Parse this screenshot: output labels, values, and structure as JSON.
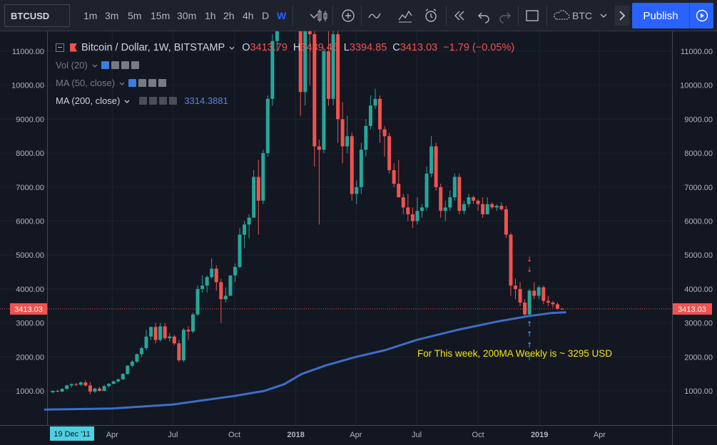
{
  "toolbar": {
    "symbol": "BTCUSD",
    "intervals": [
      {
        "label": "1m",
        "active": false
      },
      {
        "label": "3m",
        "active": false
      },
      {
        "label": "5m",
        "active": false
      },
      {
        "label": "15m",
        "active": false
      },
      {
        "label": "30m",
        "active": false
      },
      {
        "label": "1h",
        "active": false
      },
      {
        "label": "2h",
        "active": false
      },
      {
        "label": "4h",
        "active": false
      },
      {
        "label": "D",
        "active": false
      },
      {
        "label": "W",
        "active": true
      }
    ],
    "compare_label": "BTC",
    "publish_label": "Publish",
    "icons": [
      "chevron-down-icon",
      "candlestick-icon",
      "add-indicator-icon",
      "line-chart-icon",
      "templates-icon",
      "alert-icon",
      "replay-icon",
      "undo-icon",
      "redo-icon",
      "fullscreen-icon",
      "cloud-icon",
      "more-icon",
      "play-icon"
    ]
  },
  "legend": {
    "title": "Bitcoin / Dollar, 1W, BITSTAMP",
    "ohlc": {
      "o_label": "O",
      "o": "3413.79",
      "h_label": "H",
      "h": "3439.46",
      "l_label": "L",
      "l": "3394.85",
      "c_label": "C",
      "c": "3413.03",
      "change": "−1.79 (−0.05%)"
    },
    "indicators": [
      {
        "name": "Vol (20)",
        "value": ""
      },
      {
        "name": "MA (50, close)",
        "value": ""
      },
      {
        "name": "MA (200, close)",
        "value": "3314.3881"
      }
    ]
  },
  "price_tag": "3413.03",
  "cursor_date": "19 Dec '11",
  "annotation": "For This week, 200MA Weekly is ~ 3295 USD",
  "colors": {
    "up": "#26a69a",
    "down": "#ef5350",
    "ma200": "#3e6dc6",
    "annotation": "#f2e312",
    "background": "#131722"
  },
  "chart_data": {
    "type": "candlestick",
    "y_ticks": [
      "1000.00",
      "2000.00",
      "3000.00",
      "4000.00",
      "5000.00",
      "6000.00",
      "7000.00",
      "8000.00",
      "9000.00",
      "10000.00",
      "11000.00"
    ],
    "ylim": [
      1000,
      11000
    ],
    "x_ticks": [
      {
        "label": "Apr",
        "date": "2017-04-01"
      },
      {
        "label": "Jul",
        "date": "2017-07-01"
      },
      {
        "label": "Oct",
        "date": "2017-10-01"
      },
      {
        "label": "2018",
        "date": "2018-01-01"
      },
      {
        "label": "Apr",
        "date": "2018-04-01"
      },
      {
        "label": "Jul",
        "date": "2018-07-01"
      },
      {
        "label": "Oct",
        "date": "2018-10-01"
      },
      {
        "label": "2019",
        "date": "2019-01-01"
      },
      {
        "label": "Apr",
        "date": "2019-04-01"
      }
    ],
    "candles": [
      {
        "date": "2017-01-02",
        "o": 960,
        "h": 1010,
        "l": 930,
        "c": 1000
      },
      {
        "date": "2017-01-09",
        "o": 1000,
        "h": 1040,
        "l": 960,
        "c": 980
      },
      {
        "date": "2017-01-16",
        "o": 980,
        "h": 1080,
        "l": 960,
        "c": 1060
      },
      {
        "date": "2017-01-23",
        "o": 1060,
        "h": 1180,
        "l": 1040,
        "c": 1160
      },
      {
        "date": "2017-01-30",
        "o": 1160,
        "h": 1220,
        "l": 1100,
        "c": 1200
      },
      {
        "date": "2017-02-06",
        "o": 1200,
        "h": 1230,
        "l": 1140,
        "c": 1180
      },
      {
        "date": "2017-02-13",
        "o": 1180,
        "h": 1280,
        "l": 1150,
        "c": 1250
      },
      {
        "date": "2017-02-20",
        "o": 1250,
        "h": 1320,
        "l": 1130,
        "c": 1160
      },
      {
        "date": "2017-02-27",
        "o": 1160,
        "h": 1260,
        "l": 900,
        "c": 980
      },
      {
        "date": "2017-03-06",
        "o": 980,
        "h": 1090,
        "l": 930,
        "c": 1070
      },
      {
        "date": "2017-03-13",
        "o": 1070,
        "h": 1120,
        "l": 980,
        "c": 1000
      },
      {
        "date": "2017-03-20",
        "o": 1000,
        "h": 1180,
        "l": 990,
        "c": 1140
      },
      {
        "date": "2017-03-27",
        "o": 1140,
        "h": 1230,
        "l": 1100,
        "c": 1210
      },
      {
        "date": "2017-04-03",
        "o": 1210,
        "h": 1300,
        "l": 1190,
        "c": 1280
      },
      {
        "date": "2017-04-10",
        "o": 1280,
        "h": 1360,
        "l": 1250,
        "c": 1340
      },
      {
        "date": "2017-04-17",
        "o": 1340,
        "h": 1520,
        "l": 1320,
        "c": 1500
      },
      {
        "date": "2017-04-24",
        "o": 1500,
        "h": 1760,
        "l": 1480,
        "c": 1740
      },
      {
        "date": "2017-05-01",
        "o": 1740,
        "h": 1900,
        "l": 1700,
        "c": 1860
      },
      {
        "date": "2017-05-08",
        "o": 1860,
        "h": 2100,
        "l": 1820,
        "c": 2080
      },
      {
        "date": "2017-05-15",
        "o": 2080,
        "h": 2300,
        "l": 2000,
        "c": 2260
      },
      {
        "date": "2017-05-22",
        "o": 2260,
        "h": 2800,
        "l": 2200,
        "c": 2600
      },
      {
        "date": "2017-05-29",
        "o": 2600,
        "h": 2900,
        "l": 2500,
        "c": 2880
      },
      {
        "date": "2017-06-05",
        "o": 2880,
        "h": 3000,
        "l": 2400,
        "c": 2500
      },
      {
        "date": "2017-06-12",
        "o": 2500,
        "h": 3000,
        "l": 2450,
        "c": 2900
      },
      {
        "date": "2017-06-19",
        "o": 2900,
        "h": 3000,
        "l": 2500,
        "c": 2550
      },
      {
        "date": "2017-06-26",
        "o": 2550,
        "h": 2700,
        "l": 2450,
        "c": 2600
      },
      {
        "date": "2017-07-03",
        "o": 2600,
        "h": 2650,
        "l": 2350,
        "c": 2400
      },
      {
        "date": "2017-07-10",
        "o": 2400,
        "h": 2500,
        "l": 1850,
        "c": 1900
      },
      {
        "date": "2017-07-17",
        "o": 1900,
        "h": 2850,
        "l": 1850,
        "c": 2800
      },
      {
        "date": "2017-07-24",
        "o": 2800,
        "h": 2900,
        "l": 2500,
        "c": 2750
      },
      {
        "date": "2017-07-31",
        "o": 2750,
        "h": 3300,
        "l": 2700,
        "c": 3250
      },
      {
        "date": "2017-08-07",
        "o": 3250,
        "h": 4100,
        "l": 3200,
        "c": 4000
      },
      {
        "date": "2017-08-14",
        "o": 4000,
        "h": 4400,
        "l": 3900,
        "c": 4100
      },
      {
        "date": "2017-08-21",
        "o": 4100,
        "h": 4400,
        "l": 3900,
        "c": 4350
      },
      {
        "date": "2017-08-28",
        "o": 4350,
        "h": 4900,
        "l": 4300,
        "c": 4600
      },
      {
        "date": "2017-09-04",
        "o": 4600,
        "h": 4700,
        "l": 3950,
        "c": 4200
      },
      {
        "date": "2017-09-11",
        "o": 4200,
        "h": 4300,
        "l": 3000,
        "c": 3700
      },
      {
        "date": "2017-09-18",
        "o": 3700,
        "h": 4050,
        "l": 3600,
        "c": 3800
      },
      {
        "date": "2017-09-25",
        "o": 3800,
        "h": 4400,
        "l": 3800,
        "c": 4400
      },
      {
        "date": "2017-10-02",
        "o": 4400,
        "h": 4750,
        "l": 4200,
        "c": 4650
      },
      {
        "date": "2017-10-09",
        "o": 4650,
        "h": 5800,
        "l": 4600,
        "c": 5600
      },
      {
        "date": "2017-10-16",
        "o": 5600,
        "h": 6000,
        "l": 5200,
        "c": 5900
      },
      {
        "date": "2017-10-23",
        "o": 5900,
        "h": 6200,
        "l": 5500,
        "c": 6100
      },
      {
        "date": "2017-10-30",
        "o": 6100,
        "h": 7500,
        "l": 6100,
        "c": 7300
      },
      {
        "date": "2017-11-06",
        "o": 7300,
        "h": 7800,
        "l": 5600,
        "c": 6600
      },
      {
        "date": "2017-11-13",
        "o": 6600,
        "h": 8100,
        "l": 6500,
        "c": 8000
      },
      {
        "date": "2017-11-20",
        "o": 8000,
        "h": 9700,
        "l": 7900,
        "c": 9600
      },
      {
        "date": "2017-11-27",
        "o": 9600,
        "h": 11500,
        "l": 9400,
        "c": 11300
      },
      {
        "date": "2017-12-04",
        "o": 11300,
        "h": 11600,
        "l": 11000,
        "c": 11600
      }
    ],
    "clip_gap_candles": [
      {
        "date": "2018-01-01",
        "o": 11600,
        "h": 11600,
        "l": 11000,
        "c": 11600
      }
    ],
    "candles_2": [
      {
        "date": "2018-01-08",
        "o": 11600,
        "h": 11600,
        "l": 9100,
        "c": 9800
      },
      {
        "date": "2018-01-15",
        "o": 9800,
        "h": 11600,
        "l": 9400,
        "c": 11600
      },
      {
        "date": "2018-01-22",
        "o": 11600,
        "h": 11600,
        "l": 10000,
        "c": 11500
      },
      {
        "date": "2018-01-29",
        "o": 11500,
        "h": 11600,
        "l": 7600,
        "c": 8200
      },
      {
        "date": "2018-02-05",
        "o": 8200,
        "h": 8400,
        "l": 5900,
        "c": 8100
      },
      {
        "date": "2018-02-12",
        "o": 8100,
        "h": 11100,
        "l": 8000,
        "c": 11000
      },
      {
        "date": "2018-02-19",
        "o": 11000,
        "h": 11600,
        "l": 9400,
        "c": 9600
      },
      {
        "date": "2018-02-26",
        "o": 9600,
        "h": 11600,
        "l": 9400,
        "c": 11500
      },
      {
        "date": "2018-03-05",
        "o": 11500,
        "h": 11600,
        "l": 8300,
        "c": 9000
      },
      {
        "date": "2018-03-12",
        "o": 9000,
        "h": 9500,
        "l": 7700,
        "c": 8200
      },
      {
        "date": "2018-03-19",
        "o": 8200,
        "h": 9100,
        "l": 8000,
        "c": 8500
      },
      {
        "date": "2018-03-26",
        "o": 8500,
        "h": 8600,
        "l": 6600,
        "c": 6800
      },
      {
        "date": "2018-04-02",
        "o": 6800,
        "h": 7200,
        "l": 6500,
        "c": 7000
      },
      {
        "date": "2018-04-09",
        "o": 7000,
        "h": 8300,
        "l": 6800,
        "c": 8100
      },
      {
        "date": "2018-04-16",
        "o": 8100,
        "h": 9000,
        "l": 7900,
        "c": 8800
      },
      {
        "date": "2018-04-23",
        "o": 8800,
        "h": 9700,
        "l": 8700,
        "c": 9400
      },
      {
        "date": "2018-04-30",
        "o": 9400,
        "h": 9900,
        "l": 9300,
        "c": 9600
      },
      {
        "date": "2018-05-07",
        "o": 9600,
        "h": 9700,
        "l": 8300,
        "c": 8700
      },
      {
        "date": "2018-05-14",
        "o": 8700,
        "h": 8800,
        "l": 7900,
        "c": 8500
      },
      {
        "date": "2018-05-21",
        "o": 8500,
        "h": 8600,
        "l": 7400,
        "c": 7500
      },
      {
        "date": "2018-05-28",
        "o": 7500,
        "h": 7700,
        "l": 7000,
        "c": 7100
      },
      {
        "date": "2018-06-04",
        "o": 7100,
        "h": 7800,
        "l": 6700,
        "c": 6700
      },
      {
        "date": "2018-06-11",
        "o": 6700,
        "h": 6800,
        "l": 6200,
        "c": 6400
      },
      {
        "date": "2018-06-18",
        "o": 6400,
        "h": 6800,
        "l": 6000,
        "c": 6200
      },
      {
        "date": "2018-06-25",
        "o": 6200,
        "h": 6400,
        "l": 5800,
        "c": 6000
      },
      {
        "date": "2018-07-02",
        "o": 6000,
        "h": 6700,
        "l": 5900,
        "c": 6300
      },
      {
        "date": "2018-07-09",
        "o": 6300,
        "h": 6500,
        "l": 6100,
        "c": 6400
      },
      {
        "date": "2018-07-16",
        "o": 6400,
        "h": 7600,
        "l": 6300,
        "c": 7400
      },
      {
        "date": "2018-07-23",
        "o": 7400,
        "h": 8500,
        "l": 7300,
        "c": 8200
      },
      {
        "date": "2018-07-30",
        "o": 8200,
        "h": 8300,
        "l": 6900,
        "c": 7000
      },
      {
        "date": "2018-08-06",
        "o": 7000,
        "h": 7100,
        "l": 6100,
        "c": 6300
      },
      {
        "date": "2018-08-13",
        "o": 6300,
        "h": 6600,
        "l": 6000,
        "c": 6400
      },
      {
        "date": "2018-08-20",
        "o": 6400,
        "h": 6900,
        "l": 6300,
        "c": 6700
      },
      {
        "date": "2018-08-27",
        "o": 6700,
        "h": 7400,
        "l": 6600,
        "c": 7300
      },
      {
        "date": "2018-09-03",
        "o": 7300,
        "h": 7400,
        "l": 6200,
        "c": 6300
      },
      {
        "date": "2018-09-10",
        "o": 6300,
        "h": 6600,
        "l": 6200,
        "c": 6500
      },
      {
        "date": "2018-09-17",
        "o": 6500,
        "h": 6800,
        "l": 6400,
        "c": 6700
      },
      {
        "date": "2018-09-24",
        "o": 6700,
        "h": 6750,
        "l": 6500,
        "c": 6600
      },
      {
        "date": "2018-10-01",
        "o": 6600,
        "h": 6650,
        "l": 6300,
        "c": 6500
      },
      {
        "date": "2018-10-08",
        "o": 6500,
        "h": 6700,
        "l": 6100,
        "c": 6200
      },
      {
        "date": "2018-10-15",
        "o": 6200,
        "h": 6700,
        "l": 6200,
        "c": 6500
      },
      {
        "date": "2018-10-22",
        "o": 6500,
        "h": 6550,
        "l": 6350,
        "c": 6400
      },
      {
        "date": "2018-10-29",
        "o": 6400,
        "h": 6500,
        "l": 6300,
        "c": 6450
      },
      {
        "date": "2018-11-05",
        "o": 6450,
        "h": 6550,
        "l": 6300,
        "c": 6350
      },
      {
        "date": "2018-11-12",
        "o": 6350,
        "h": 6450,
        "l": 5500,
        "c": 5600
      },
      {
        "date": "2018-11-19",
        "o": 5600,
        "h": 5650,
        "l": 3800,
        "c": 4100
      },
      {
        "date": "2018-11-26",
        "o": 4100,
        "h": 4300,
        "l": 3700,
        "c": 4000
      },
      {
        "date": "2018-12-03",
        "o": 4000,
        "h": 4200,
        "l": 3500,
        "c": 3600
      },
      {
        "date": "2018-12-10",
        "o": 3600,
        "h": 3700,
        "l": 3200,
        "c": 3250
      },
      {
        "date": "2018-12-17",
        "o": 3250,
        "h": 4000,
        "l": 3200,
        "c": 3950
      },
      {
        "date": "2018-12-24",
        "o": 3950,
        "h": 4200,
        "l": 3700,
        "c": 3800
      },
      {
        "date": "2018-12-31",
        "o": 3800,
        "h": 4100,
        "l": 3700,
        "c": 4050
      },
      {
        "date": "2019-01-07",
        "o": 4050,
        "h": 4100,
        "l": 3550,
        "c": 3650
      },
      {
        "date": "2019-01-14",
        "o": 3650,
        "h": 3800,
        "l": 3500,
        "c": 3600
      },
      {
        "date": "2019-01-21",
        "o": 3600,
        "h": 3650,
        "l": 3450,
        "c": 3550
      },
      {
        "date": "2019-01-28",
        "o": 3550,
        "h": 3600,
        "l": 3400,
        "c": 3420
      },
      {
        "date": "2019-02-04",
        "o": 3413.79,
        "h": 3439.46,
        "l": 3394.85,
        "c": 3413.03
      }
    ],
    "ma200": [
      {
        "date": "2016-12-20",
        "y": 450
      },
      {
        "date": "2017-04-01",
        "y": 480
      },
      {
        "date": "2017-07-01",
        "y": 600
      },
      {
        "date": "2017-10-01",
        "y": 850
      },
      {
        "date": "2017-11-15",
        "y": 1000
      },
      {
        "date": "2017-12-15",
        "y": 1200
      },
      {
        "date": "2018-01-10",
        "y": 1500
      },
      {
        "date": "2018-02-15",
        "y": 1750
      },
      {
        "date": "2018-04-01",
        "y": 2000
      },
      {
        "date": "2018-05-15",
        "y": 2200
      },
      {
        "date": "2018-07-01",
        "y": 2500
      },
      {
        "date": "2018-09-01",
        "y": 2800
      },
      {
        "date": "2018-11-01",
        "y": 3050
      },
      {
        "date": "2018-12-15",
        "y": 3200
      },
      {
        "date": "2019-01-20",
        "y": 3295
      },
      {
        "date": "2019-02-10",
        "y": 3314
      }
    ],
    "annotation_arrows_down": [
      {
        "date": "2018-12-17",
        "y": 4800
      },
      {
        "date": "2018-12-17",
        "y": 4500
      }
    ],
    "annotation_arrows_up": [
      {
        "date": "2018-12-17",
        "y": 2900
      },
      {
        "date": "2018-12-17",
        "y": 2600
      },
      {
        "date": "2018-12-17",
        "y": 2280
      },
      {
        "date": "2018-12-17",
        "y": 1900
      }
    ]
  }
}
